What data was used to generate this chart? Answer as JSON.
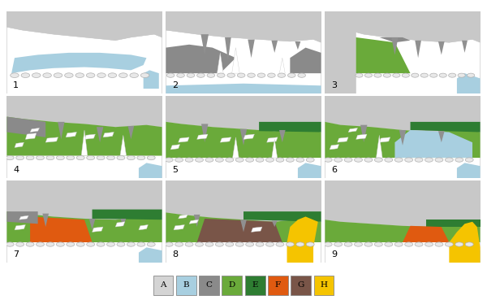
{
  "legend_labels": [
    "A",
    "B",
    "C",
    "D",
    "E",
    "F",
    "G",
    "H"
  ],
  "legend_colors": [
    "#d4d4d4",
    "#a8cfe0",
    "#8a8a8a",
    "#6aaa3a",
    "#2e7d32",
    "#e05a10",
    "#795548",
    "#f5c400"
  ],
  "background": "#ffffff",
  "rock_color": "#c8c8c8",
  "white": "#ffffff",
  "boulder_color": "#d0d0d0",
  "boulder_edge": "#aaaaaa",
  "stala_color": "#909090"
}
